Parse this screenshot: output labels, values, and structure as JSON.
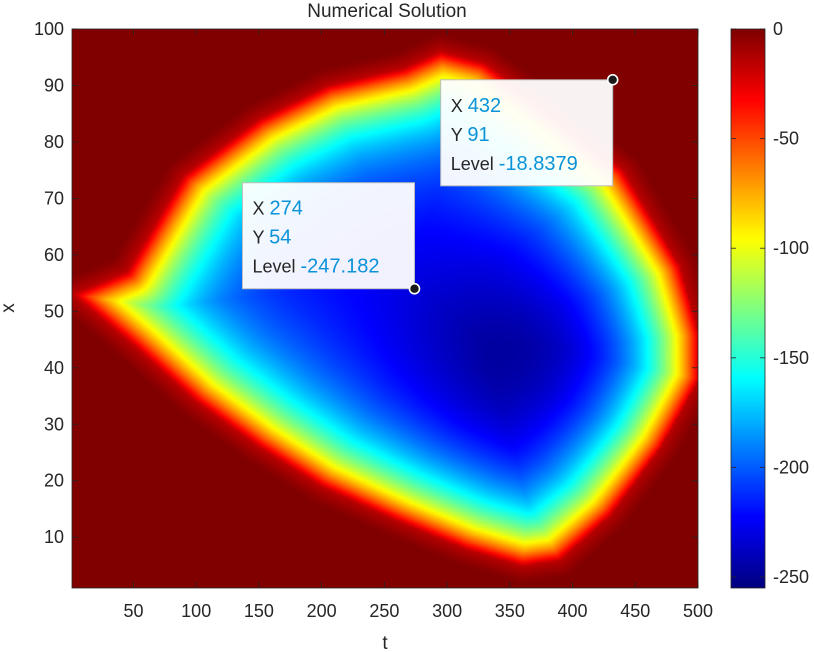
{
  "chart_data": {
    "type": "heatmap",
    "title": "Numerical Solution",
    "xlabel": "t",
    "ylabel": "x",
    "xlim": [
      1,
      500
    ],
    "ylim": [
      1,
      100
    ],
    "xticks": [
      50,
      100,
      150,
      200,
      250,
      300,
      350,
      400,
      450,
      500
    ],
    "yticks": [
      10,
      20,
      30,
      40,
      50,
      60,
      70,
      80,
      90,
      100
    ],
    "colormap": "jet",
    "clim": [
      -255,
      0
    ],
    "colorbar": {
      "position": "right",
      "ticks": [
        0,
        -50,
        -100,
        -150,
        -200,
        -250
      ]
    },
    "surface_model": {
      "min_value": -255,
      "max_value": 0,
      "basin_boundary": [
        [
          2,
          53
        ],
        [
          45,
          57
        ],
        [
          90,
          74
        ],
        [
          150,
          84
        ],
        [
          205,
          90
        ],
        [
          265,
          93
        ],
        [
          295,
          96
        ],
        [
          330,
          94
        ],
        [
          385,
          85
        ],
        [
          440,
          75
        ],
        [
          485,
          58
        ],
        [
          500,
          46
        ],
        [
          500,
          38
        ],
        [
          470,
          26
        ],
        [
          430,
          14
        ],
        [
          390,
          6
        ],
        [
          360,
          5
        ],
        [
          315,
          8
        ],
        [
          260,
          13
        ],
        [
          200,
          19
        ],
        [
          150,
          26
        ],
        [
          100,
          34
        ],
        [
          50,
          44
        ]
      ],
      "deepest_point": [
        370,
        40
      ]
    },
    "datatips": [
      {
        "x_label": "X",
        "x": 432,
        "y_label": "Y",
        "y": 91,
        "level_label": "Level",
        "level": -18.8379
      },
      {
        "x_label": "X",
        "x": 274,
        "y_label": "Y",
        "y": 54,
        "level_label": "Level",
        "level": -247.182
      }
    ]
  }
}
